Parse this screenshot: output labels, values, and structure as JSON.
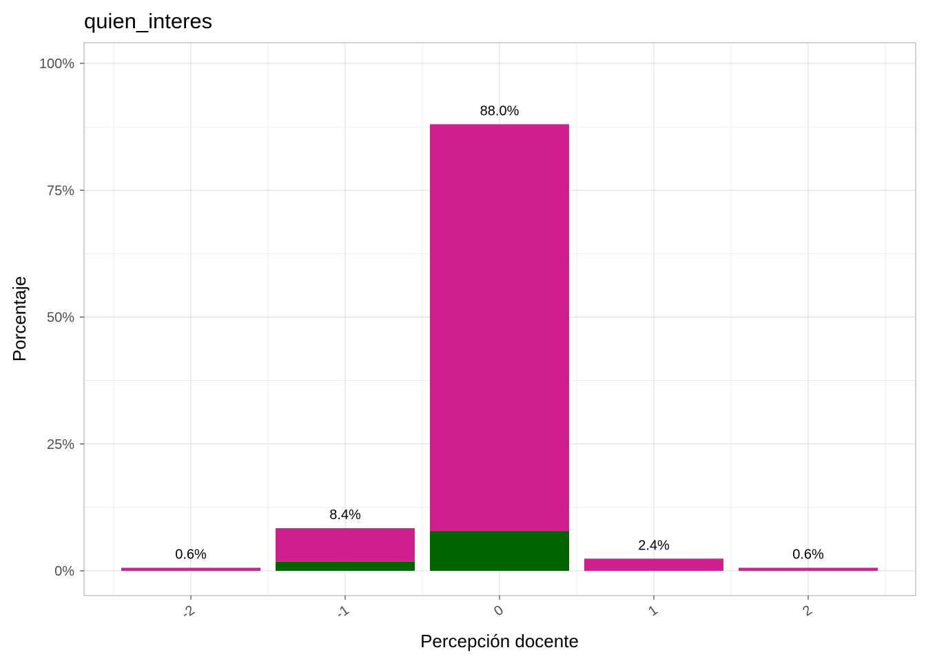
{
  "chart_data": {
    "type": "bar",
    "stacked": true,
    "title": "quien_interes",
    "xlabel": "Percepción docente",
    "ylabel": "Porcentaje",
    "categories": [
      "-2",
      "-1",
      "0",
      "1",
      "2"
    ],
    "series": [
      {
        "color": "#006400",
        "values": [
          0,
          1.8,
          7.8,
          0,
          0
        ]
      },
      {
        "color": "#D01F8E",
        "values": [
          0.6,
          6.6,
          80.2,
          2.4,
          0.6
        ]
      }
    ],
    "totals": [
      0.6,
      8.4,
      88.0,
      2.4,
      0.6
    ],
    "data_labels": [
      "0.6%",
      "8.4%",
      "88.0%",
      "2.4%",
      "0.6%"
    ],
    "ylim": [
      0,
      100
    ],
    "y_ticks": [
      0,
      25,
      50,
      75,
      100
    ],
    "y_tick_labels": [
      "0%",
      "25%",
      "50%",
      "75%",
      "100%"
    ],
    "x_tick_rotation": "rotated",
    "grid": true,
    "legend": "none",
    "panel_border_color": "#b3b3b3",
    "grid_color": "#dedede"
  }
}
